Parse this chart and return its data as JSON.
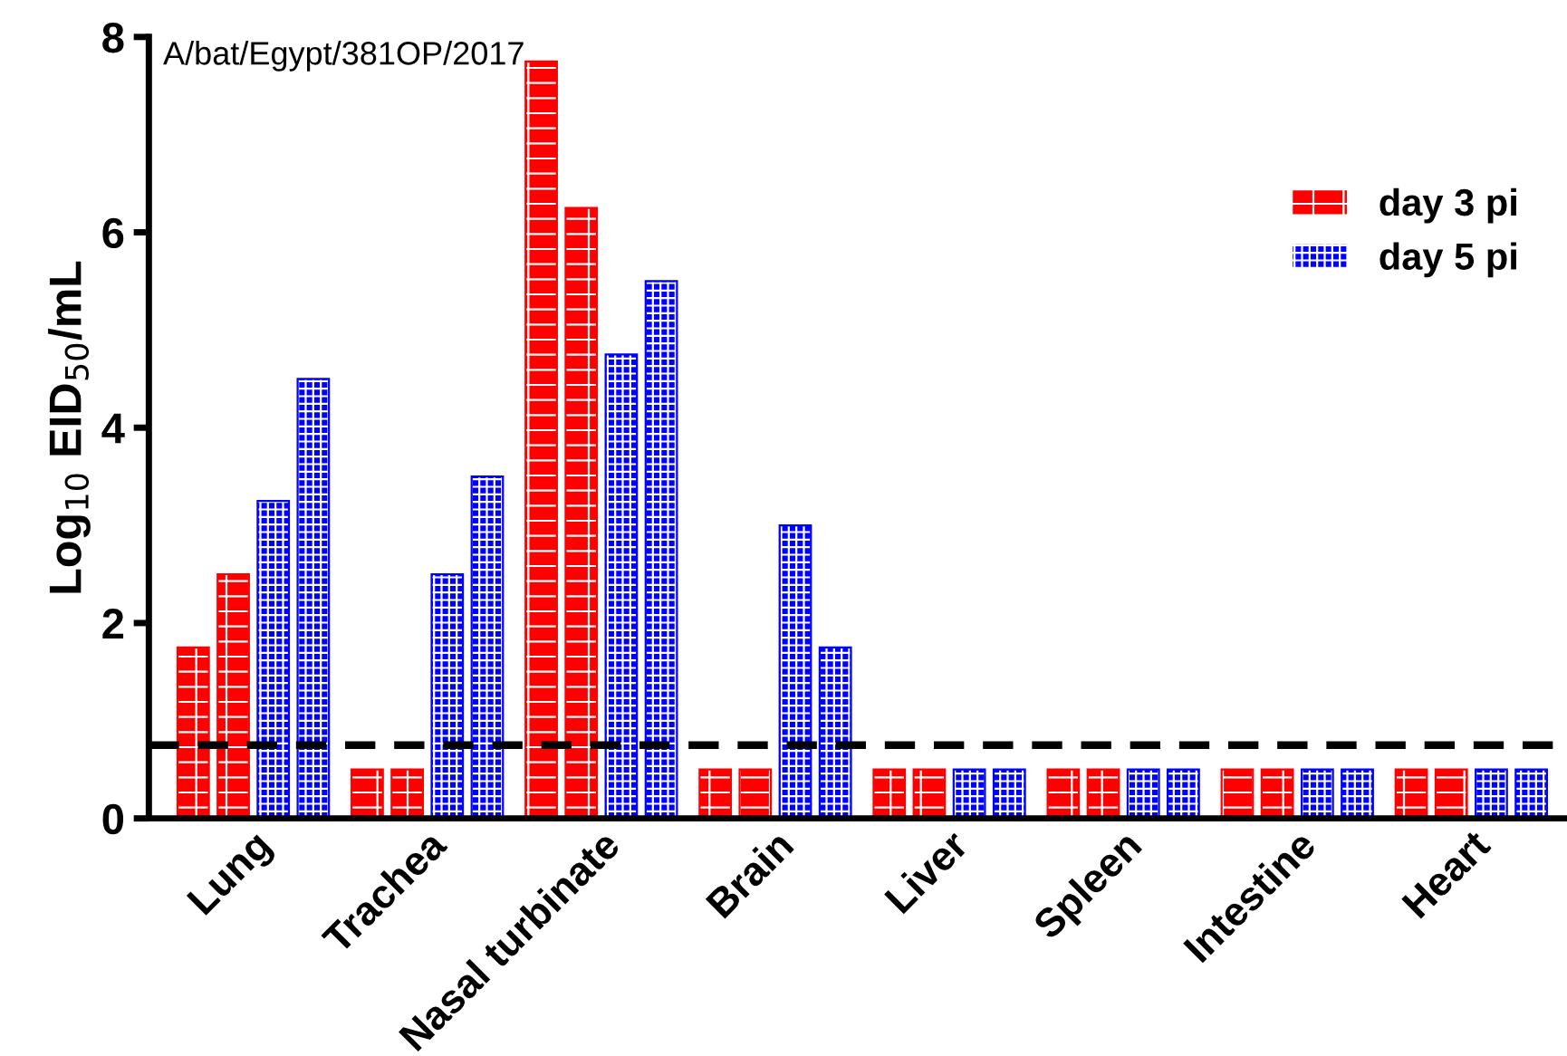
{
  "chart_data": {
    "type": "bar",
    "title": "A/bat/Egypt/381OP/2017",
    "ylabel": "Log$_{10}$ EID$_{50}$/mL",
    "categories": [
      "Lung",
      "Trachea",
      "Nasal turbinate",
      "Brain",
      "Liver",
      "Spleen",
      "Intestine",
      "Heart"
    ],
    "series": [
      {
        "name": "day 3 pi",
        "color": "#ff0000",
        "values": [
          1.75,
          0.5,
          7.75,
          0.5,
          0.5,
          0.5,
          0.5,
          0.5
        ]
      },
      {
        "color": "#ff0000",
        "values": [
          2.5,
          0.5,
          6.25,
          0.5,
          0.5,
          0.5,
          0.5,
          0.5
        ]
      },
      {
        "name": "day 5 pi",
        "color": "#0000ff",
        "values": [
          3.25,
          2.5,
          4.75,
          3.0,
          0.5,
          0.5,
          0.5,
          0.5
        ]
      },
      {
        "color": "#0000ff",
        "values": [
          4.5,
          3.5,
          5.5,
          1.75,
          0.5,
          0.5,
          0.5,
          0.5
        ]
      }
    ],
    "ylim": [
      0,
      8
    ],
    "yticks": [
      0,
      2,
      4,
      6,
      8
    ],
    "ref_lines": [
      {
        "axis": "y",
        "value": 0.75,
        "color": "#000000",
        "line_style": "dashed"
      }
    ],
    "legend": "top right",
    "grid": false
  }
}
